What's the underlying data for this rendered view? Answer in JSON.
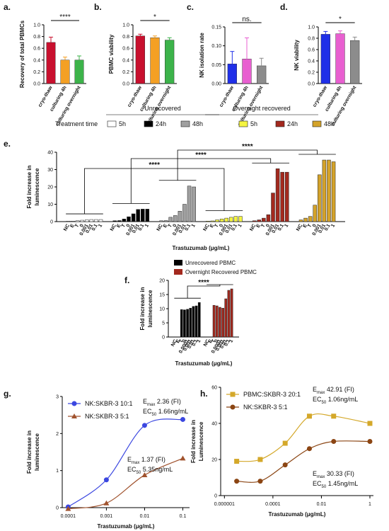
{
  "chart_data": [
    {
      "type": "bar",
      "label": "a.",
      "ylabel": [
        "Recovery of total PBMCs"
      ],
      "categories": [
        "cryo-thaw",
        "culturing 4h",
        "culturing overnight"
      ],
      "values": [
        0.7,
        0.4,
        0.4
      ],
      "errors": [
        0.09,
        0.05,
        0.07
      ],
      "colors": [
        "#c8102e",
        "#f4a024",
        "#3cb34a"
      ],
      "ylim": [
        0,
        1.0
      ],
      "yticks": [
        {
          "value": 0,
          "label": "0.0"
        },
        {
          "value": 0.2,
          "label": "0.2"
        },
        {
          "value": 0.4,
          "label": "0.4"
        },
        {
          "value": 0.6,
          "label": "0.6"
        },
        {
          "value": 0.8,
          "label": "0.8"
        },
        {
          "value": 1.0,
          "label": "1.0"
        }
      ],
      "significance": "****"
    },
    {
      "type": "bar",
      "label": "b.",
      "ylabel": [
        "PBMC viability"
      ],
      "categories": [
        "cryo-thaw",
        "culturing 4h",
        "culturing overnight"
      ],
      "values": [
        0.81,
        0.78,
        0.74
      ],
      "errors": [
        0.03,
        0.03,
        0.04
      ],
      "colors": [
        "#c8102e",
        "#f4a024",
        "#3cb34a"
      ],
      "ylim": [
        0,
        1.0
      ],
      "yticks": [
        {
          "value": 0,
          "label": "0.0"
        },
        {
          "value": 0.2,
          "label": "0.2"
        },
        {
          "value": 0.4,
          "label": "0.4"
        },
        {
          "value": 0.6,
          "label": "0.6"
        },
        {
          "value": 0.8,
          "label": "0.8"
        },
        {
          "value": 1.0,
          "label": "1.0"
        }
      ],
      "significance": "*"
    },
    {
      "type": "bar",
      "label": "c.",
      "ylabel": [
        "NK isolation rate"
      ],
      "categories": [
        "cryo-thaw",
        "culturing 4h",
        "culturing overnight"
      ],
      "values": [
        0.052,
        0.065,
        0.047
      ],
      "errors": [
        0.033,
        0.056,
        0.02
      ],
      "colors": [
        "#1f2fe8",
        "#e85fd0",
        "#8c8c8c"
      ],
      "ylim": [
        0,
        0.15
      ],
      "yticks": [
        {
          "value": 0,
          "label": "0.00"
        },
        {
          "value": 0.05,
          "label": "0.05"
        },
        {
          "value": 0.1,
          "label": "0.10"
        },
        {
          "value": 0.15,
          "label": "0.15"
        }
      ],
      "significance": "ns."
    },
    {
      "type": "bar",
      "label": "d.",
      "ylabel": [
        "NK viability"
      ],
      "categories": [
        "cryo-thaw",
        "culturing 4h",
        "culturing overnight"
      ],
      "values": [
        0.87,
        0.88,
        0.76
      ],
      "errors": [
        0.05,
        0.05,
        0.06
      ],
      "colors": [
        "#1f2fe8",
        "#e85fd0",
        "#8c8c8c"
      ],
      "ylim": [
        0,
        1.0
      ],
      "yticks": [
        {
          "value": 0,
          "label": "0.0"
        },
        {
          "value": 0.2,
          "label": "0.2"
        },
        {
          "value": 0.4,
          "label": "0.4"
        },
        {
          "value": 0.6,
          "label": "0.6"
        },
        {
          "value": 0.8,
          "label": "0.8"
        },
        {
          "value": 1.0,
          "label": "1.0"
        }
      ],
      "significance": "*"
    },
    {
      "type": "bar",
      "label": "e.",
      "ylabel": [
        "Fold increase in",
        "luminescence"
      ],
      "xlabel": "Trastuzumab (μg/mL)",
      "legend_title": "Treatment time",
      "groups": [
        "Unrecovered",
        "Overnight recovered"
      ],
      "categories": [
        "NC",
        "E",
        "T",
        "0",
        "0.001",
        "0.01",
        "0.1",
        "1"
      ],
      "series": [
        {
          "name": "5h",
          "color": "#ffffff",
          "values": [
            0.3,
            0.3,
            0.5,
            0.8,
            1.0,
            1.2,
            1.2,
            1.2
          ]
        },
        {
          "name": "24h",
          "color": "#000000",
          "values": [
            0.5,
            0.6,
            1.5,
            2.8,
            4.5,
            7,
            7.2,
            7.2
          ]
        },
        {
          "name": "48h",
          "color": "#a0a0a0",
          "values": [
            0.5,
            0.6,
            2.5,
            3.5,
            6,
            10,
            20.5,
            20
          ]
        },
        {
          "name": "5h",
          "color": "#f5f542",
          "values": [
            0.3,
            0.4,
            1,
            1.5,
            2,
            2.5,
            3,
            3
          ]
        },
        {
          "name": "24h",
          "color": "#a3291e",
          "values": [
            0.5,
            1,
            2,
            4,
            16.5,
            30.5,
            28.5,
            28.5
          ]
        },
        {
          "name": "48h",
          "color": "#d4a32a",
          "values": [
            1,
            2,
            3,
            9.5,
            27,
            35.5,
            35.5,
            34.5
          ]
        }
      ],
      "ylim": [
        0,
        40
      ],
      "yticks": [
        0,
        10,
        20,
        30,
        40
      ],
      "annotations": [
        "****",
        "****",
        "****"
      ]
    },
    {
      "type": "bar",
      "label": "f.",
      "ylabel": [
        "Fold increase in",
        "luminescence"
      ],
      "xlabel": "Trastuzumab (μg/mL)",
      "categories": [
        "NC",
        "E",
        "T",
        "0",
        "0.0001",
        "0.001",
        "0.01",
        "0.1",
        "1"
      ],
      "series": [
        {
          "name": "Unrecovered PBMC",
          "color": "#000000",
          "values": [
            null,
            null,
            9.7,
            9.6,
            9.8,
            10.2,
            10.8,
            11,
            12.2
          ]
        },
        {
          "name": "Overnight Recovered PBMC",
          "color": "#a3291e",
          "values": [
            null,
            null,
            11.2,
            11,
            10.5,
            10.2,
            13.5,
            16.5,
            17
          ]
        }
      ],
      "ylim": [
        0,
        20
      ],
      "yticks": [
        0,
        5,
        10,
        15,
        20
      ],
      "significance": "****"
    },
    {
      "type": "line",
      "label": "g.",
      "ylabel": [
        "Fold increase in",
        "luminescence"
      ],
      "xlabel": "Trastuzumab (μg/mL)",
      "xlog": true,
      "x": [
        0.0001,
        0.001,
        0.01,
        0.1
      ],
      "series": [
        {
          "name": "NK:SKBR-3 10:1",
          "color": "#3b47e0",
          "marker": "circle",
          "values": [
            0.02,
            0.75,
            2.22,
            2.38
          ]
        },
        {
          "name": "NK:SKBR-3 5:1",
          "color": "#a0522d",
          "marker": "triangle",
          "values": [
            -0.03,
            0.12,
            0.88,
            1.33
          ]
        }
      ],
      "xlim": [
        7e-05,
        0.15
      ],
      "xticks": [
        0.0001,
        0.001,
        0.01,
        0.1
      ],
      "ylim": [
        0,
        3
      ],
      "yticks": [
        0,
        1,
        2,
        3
      ],
      "annotations": [
        [
          [
            "E",
            "max",
            " 2.36 (FI)"
          ],
          [
            "EC",
            "50",
            " 1.66ng/mL"
          ]
        ],
        [
          [
            "E",
            "max",
            " 1.37 (FI)"
          ],
          [
            "EC",
            "50",
            " 5.35ng/mL"
          ]
        ]
      ]
    },
    {
      "type": "line",
      "label": "h.",
      "ylabel": [
        "Fold increase in",
        "Luminescence"
      ],
      "xlabel": "Trastuzumab (μg/mL)",
      "xlog": true,
      "x": [
        3.2e-06,
        3e-05,
        0.00032,
        0.0032,
        0.032,
        1
      ],
      "series": [
        {
          "name": "PBMC:SKBR-3 20:1",
          "color": "#d4a82a",
          "marker": "square",
          "values": [
            19,
            20,
            29,
            44,
            44,
            40
          ]
        },
        {
          "name": "NK:SKBR-3 5:1",
          "color": "#8b4513",
          "marker": "circle",
          "values": [
            8,
            8,
            17,
            26,
            30,
            30
          ]
        }
      ],
      "xlim": [
        7e-07,
        1.4
      ],
      "xticks": [
        1e-06,
        0.0001,
        0.01,
        1
      ],
      "ylim": [
        0,
        60
      ],
      "yticks": [
        0,
        20,
        40,
        60
      ],
      "annotations": [
        [
          [
            "E",
            "max",
            " 42.91 (FI)"
          ],
          [
            "EC",
            "50",
            " 1.06ng/mL"
          ]
        ],
        [
          [
            "E",
            "max",
            " 30.33 (FI)"
          ],
          [
            "EC",
            "50",
            " 1.45ng/mL"
          ]
        ]
      ]
    }
  ]
}
